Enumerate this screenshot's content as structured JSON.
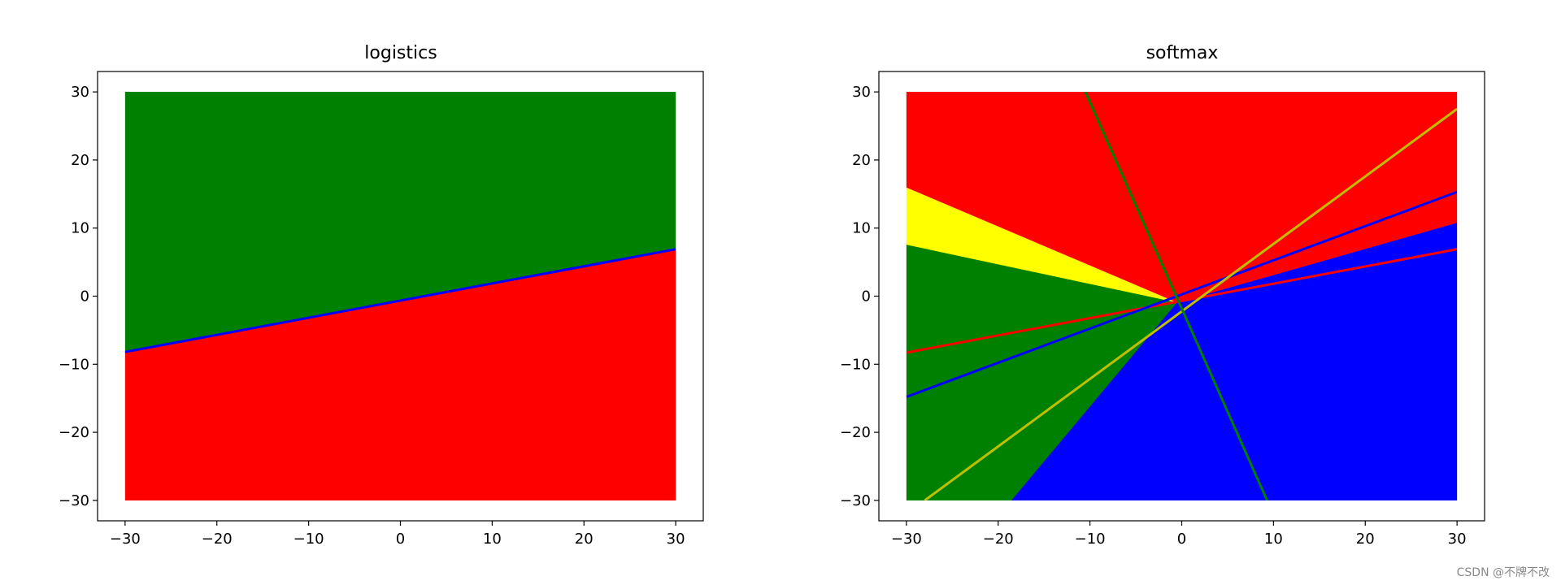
{
  "watermark": "CSDN @不牌不改",
  "chart_data": [
    {
      "type": "area",
      "title": "logistics",
      "xlabel": "",
      "ylabel": "",
      "xlim": [
        -33,
        33
      ],
      "ylim": [
        -33,
        33
      ],
      "xticks": [
        -30,
        -20,
        -10,
        0,
        10,
        20,
        30
      ],
      "yticks": [
        -30,
        -20,
        -10,
        0,
        10,
        20,
        30
      ],
      "grid": false,
      "legend": "none",
      "data_extent": [
        -30,
        30
      ],
      "regions": [
        {
          "color": "#008000",
          "polygon": [
            [
              -30,
              30
            ],
            [
              30,
              30
            ],
            [
              30,
              6.9
            ],
            [
              -30,
              -8.2
            ]
          ]
        },
        {
          "color": "#ff0000",
          "polygon": [
            [
              -30,
              -8.2
            ],
            [
              30,
              6.9
            ],
            [
              30,
              -30
            ],
            [
              -30,
              -30
            ]
          ]
        }
      ],
      "lines": [
        {
          "color": "#0000ff",
          "points": [
            [
              -30,
              -8.2
            ],
            [
              30,
              6.9
            ]
          ]
        }
      ]
    },
    {
      "type": "area",
      "title": "softmax",
      "xlabel": "",
      "ylabel": "",
      "xlim": [
        -33,
        33
      ],
      "ylim": [
        -33,
        33
      ],
      "xticks": [
        -30,
        -20,
        -10,
        0,
        10,
        20,
        30
      ],
      "yticks": [
        -30,
        -20,
        -10,
        0,
        10,
        20,
        30
      ],
      "grid": false,
      "legend": "none",
      "data_extent": [
        -30,
        30
      ],
      "regions": [
        {
          "color": "#ff0000",
          "polygon": [
            [
              -30,
              30
            ],
            [
              30,
              30
            ],
            [
              30,
              10.7
            ],
            [
              -0.5,
              -1
            ],
            [
              -30,
              15.9
            ]
          ]
        },
        {
          "color": "#ffff00",
          "polygon": [
            [
              -30,
              15.9
            ],
            [
              -0.5,
              -1
            ],
            [
              -30,
              7.5
            ]
          ]
        },
        {
          "color": "#008000",
          "polygon": [
            [
              -30,
              7.5
            ],
            [
              -0.5,
              -1
            ],
            [
              -18.5,
              -30
            ],
            [
              -30,
              -30
            ]
          ]
        },
        {
          "color": "#0000ff",
          "polygon": [
            [
              -0.5,
              -1
            ],
            [
              30,
              10.7
            ],
            [
              30,
              -30
            ],
            [
              -18.5,
              -30
            ]
          ]
        }
      ],
      "lines": [
        {
          "color": "#ff0000",
          "points": [
            [
              -30,
              -8.3
            ],
            [
              30,
              6.9
            ]
          ]
        },
        {
          "color": "#0000ff",
          "points": [
            [
              -30,
              -14.8
            ],
            [
              30,
              15.3
            ]
          ]
        },
        {
          "color": "#bfbf00",
          "points": [
            [
              -28,
              -30
            ],
            [
              30,
              27.5
            ]
          ]
        },
        {
          "color": "#008000",
          "points": [
            [
              -10.5,
              30
            ],
            [
              9.3,
              -30
            ]
          ]
        }
      ]
    }
  ]
}
